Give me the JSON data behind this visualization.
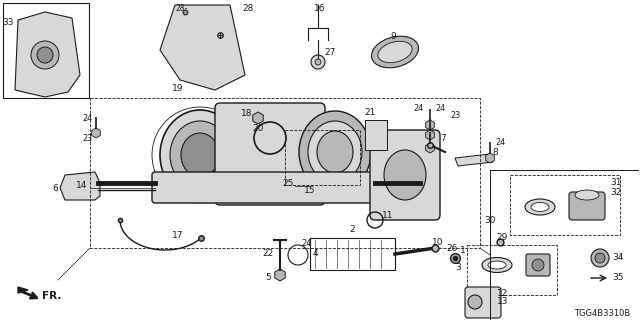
{
  "bg_color": "#ffffff",
  "line_color": "#1a1a1a",
  "diagram_code": "TGG4B3310B",
  "fig_width": 6.4,
  "fig_height": 3.2,
  "dpi": 100
}
